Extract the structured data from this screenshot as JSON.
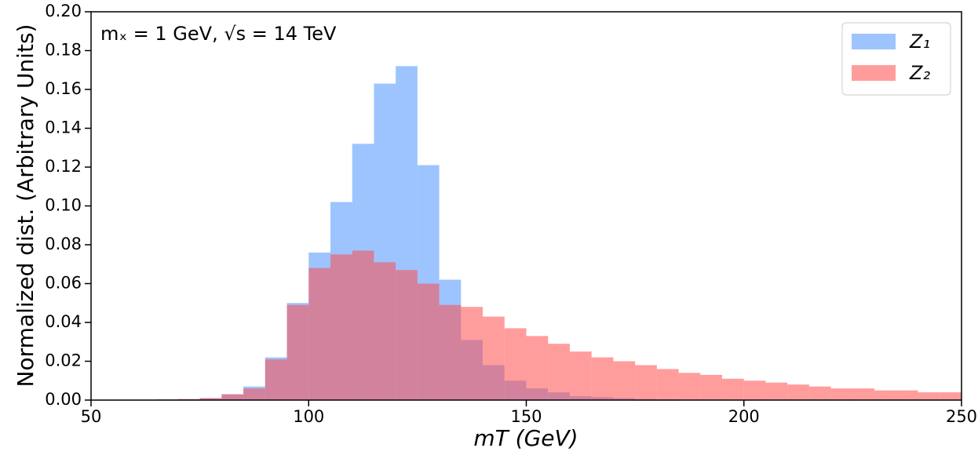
{
  "chart_data": {
    "type": "histogram",
    "annotation": "mₓ = 1 GeV, √s = 14 TeV",
    "x_label": "mT (GeV)",
    "y_label": "Normalized dist. (Arbitrary Units)",
    "bins": [
      50,
      55,
      60,
      65,
      70,
      75,
      80,
      85,
      90,
      95,
      100,
      105,
      110,
      115,
      120,
      125,
      130,
      135,
      140,
      145,
      150,
      155,
      160,
      165,
      170,
      175,
      180,
      185,
      190,
      195,
      200,
      205,
      210,
      215,
      220,
      225,
      230,
      235,
      240,
      245,
      250
    ],
    "series": [
      {
        "name": "Z₁",
        "color": "#4d94ff",
        "values": [
          0,
          0,
          0,
          0.0003,
          0.0005,
          0.001,
          0.003,
          0.007,
          0.022,
          0.05,
          0.076,
          0.102,
          0.132,
          0.163,
          0.172,
          0.121,
          0.062,
          0.031,
          0.018,
          0.01,
          0.006,
          0.004,
          0.002,
          0.0015,
          0.001,
          0.0005,
          0.0003,
          0.0002,
          0.0001,
          0,
          0,
          0,
          0,
          0,
          0,
          0,
          0,
          0,
          0,
          0
        ]
      },
      {
        "name": "Z₂",
        "color": "#ff4d4d",
        "values": [
          0,
          0,
          0,
          0.0003,
          0.0005,
          0.001,
          0.003,
          0.006,
          0.021,
          0.049,
          0.068,
          0.075,
          0.077,
          0.071,
          0.067,
          0.06,
          0.049,
          0.048,
          0.043,
          0.037,
          0.033,
          0.029,
          0.025,
          0.022,
          0.02,
          0.018,
          0.016,
          0.014,
          0.013,
          0.011,
          0.01,
          0.009,
          0.008,
          0.007,
          0.006,
          0.006,
          0.005,
          0.005,
          0.004,
          0.004
        ]
      }
    ],
    "alpha": 0.55,
    "xlim": [
      50,
      250
    ],
    "xticks": [
      50,
      100,
      150,
      200,
      250
    ],
    "ylim": [
      0,
      0.2
    ],
    "yticks": [
      {
        "value": 0,
        "label": "0.00"
      },
      {
        "value": 0.02,
        "label": "0.02"
      },
      {
        "value": 0.04,
        "label": "0.04"
      },
      {
        "value": 0.06,
        "label": "0.06"
      },
      {
        "value": 0.08,
        "label": "0.08"
      },
      {
        "value": 0.1,
        "label": "0.10"
      },
      {
        "value": 0.12,
        "label": "0.12"
      },
      {
        "value": 0.14,
        "label": "0.14"
      },
      {
        "value": 0.16,
        "label": "0.16"
      },
      {
        "value": 0.18,
        "label": "0.18"
      },
      {
        "value": 0.2,
        "label": "0.20"
      }
    ],
    "legend": "upper right"
  }
}
